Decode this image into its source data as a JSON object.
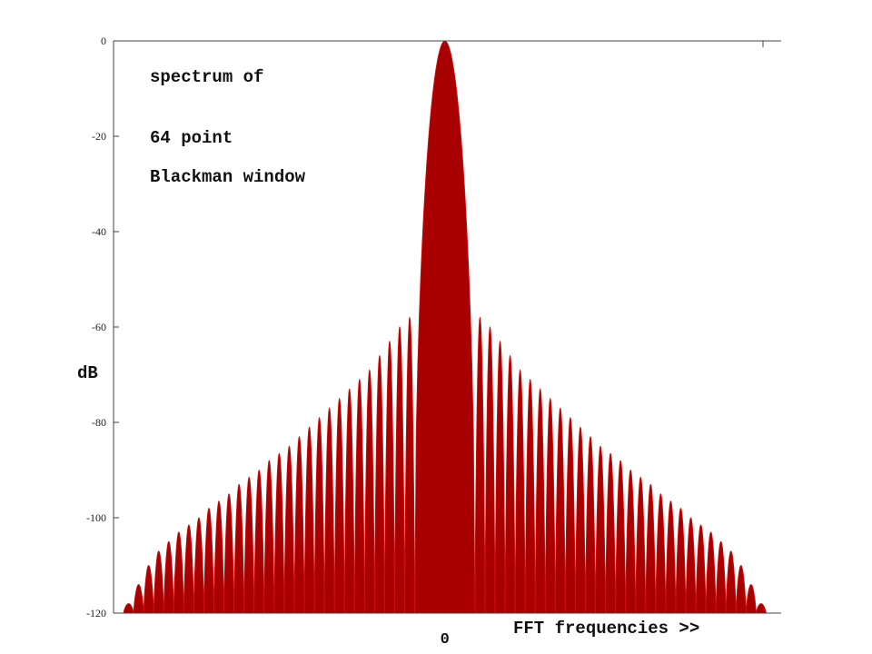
{
  "chart_data": {
    "type": "lobes",
    "title_lines": [
      "spectrum of",
      "64 point",
      "Blackman window"
    ],
    "y_label": "dB",
    "x_label": "FFT frequencies >>",
    "xlim": [
      -33,
      33.5
    ],
    "xticks": [
      0
    ],
    "ylim": [
      -120,
      0
    ],
    "yticks": [
      0,
      -20,
      -40,
      -60,
      -80,
      -100,
      -120
    ],
    "series": [
      {
        "color": "#a80000",
        "x": [
          -31.5,
          -30.5,
          -29.5,
          -28.5,
          -27.5,
          -26.5,
          -25.5,
          -24.5,
          -23.5,
          -22.5,
          -21.5,
          -20.5,
          -19.5,
          -18.5,
          -17.5,
          -16.5,
          -15.5,
          -14.5,
          -13.5,
          -12.5,
          -11.5,
          -10.5,
          -9.5,
          -8.5,
          -7.5,
          -6.5,
          -5.5,
          -4.5,
          -3.5,
          0,
          3.5,
          4.5,
          5.5,
          6.5,
          7.5,
          8.5,
          9.5,
          10.5,
          11.5,
          12.5,
          13.5,
          14.5,
          15.5,
          16.5,
          17.5,
          18.5,
          19.5,
          20.5,
          21.5,
          22.5,
          23.5,
          24.5,
          25.5,
          26.5,
          27.5,
          28.5,
          29.5,
          30.5,
          31.5
        ],
        "values": [
          -118,
          -114,
          -110,
          -107,
          -105,
          -103,
          -101.5,
          -100,
          -98,
          -96.5,
          -95,
          -93,
          -91.5,
          -90,
          -88,
          -86.5,
          -85,
          -83,
          -81,
          -79,
          -77,
          -75,
          -73,
          -71,
          -69,
          -66,
          -63,
          -60,
          -58,
          0,
          -58,
          -60,
          -63,
          -66,
          -69,
          -71,
          -73,
          -75,
          -77,
          -79,
          -81,
          -83,
          -85,
          -86.5,
          -88,
          -90,
          -91.5,
          -93,
          -95,
          -96.5,
          -98,
          -100,
          -101.5,
          -103,
          -105,
          -107,
          -110,
          -114,
          -118
        ]
      }
    ]
  }
}
